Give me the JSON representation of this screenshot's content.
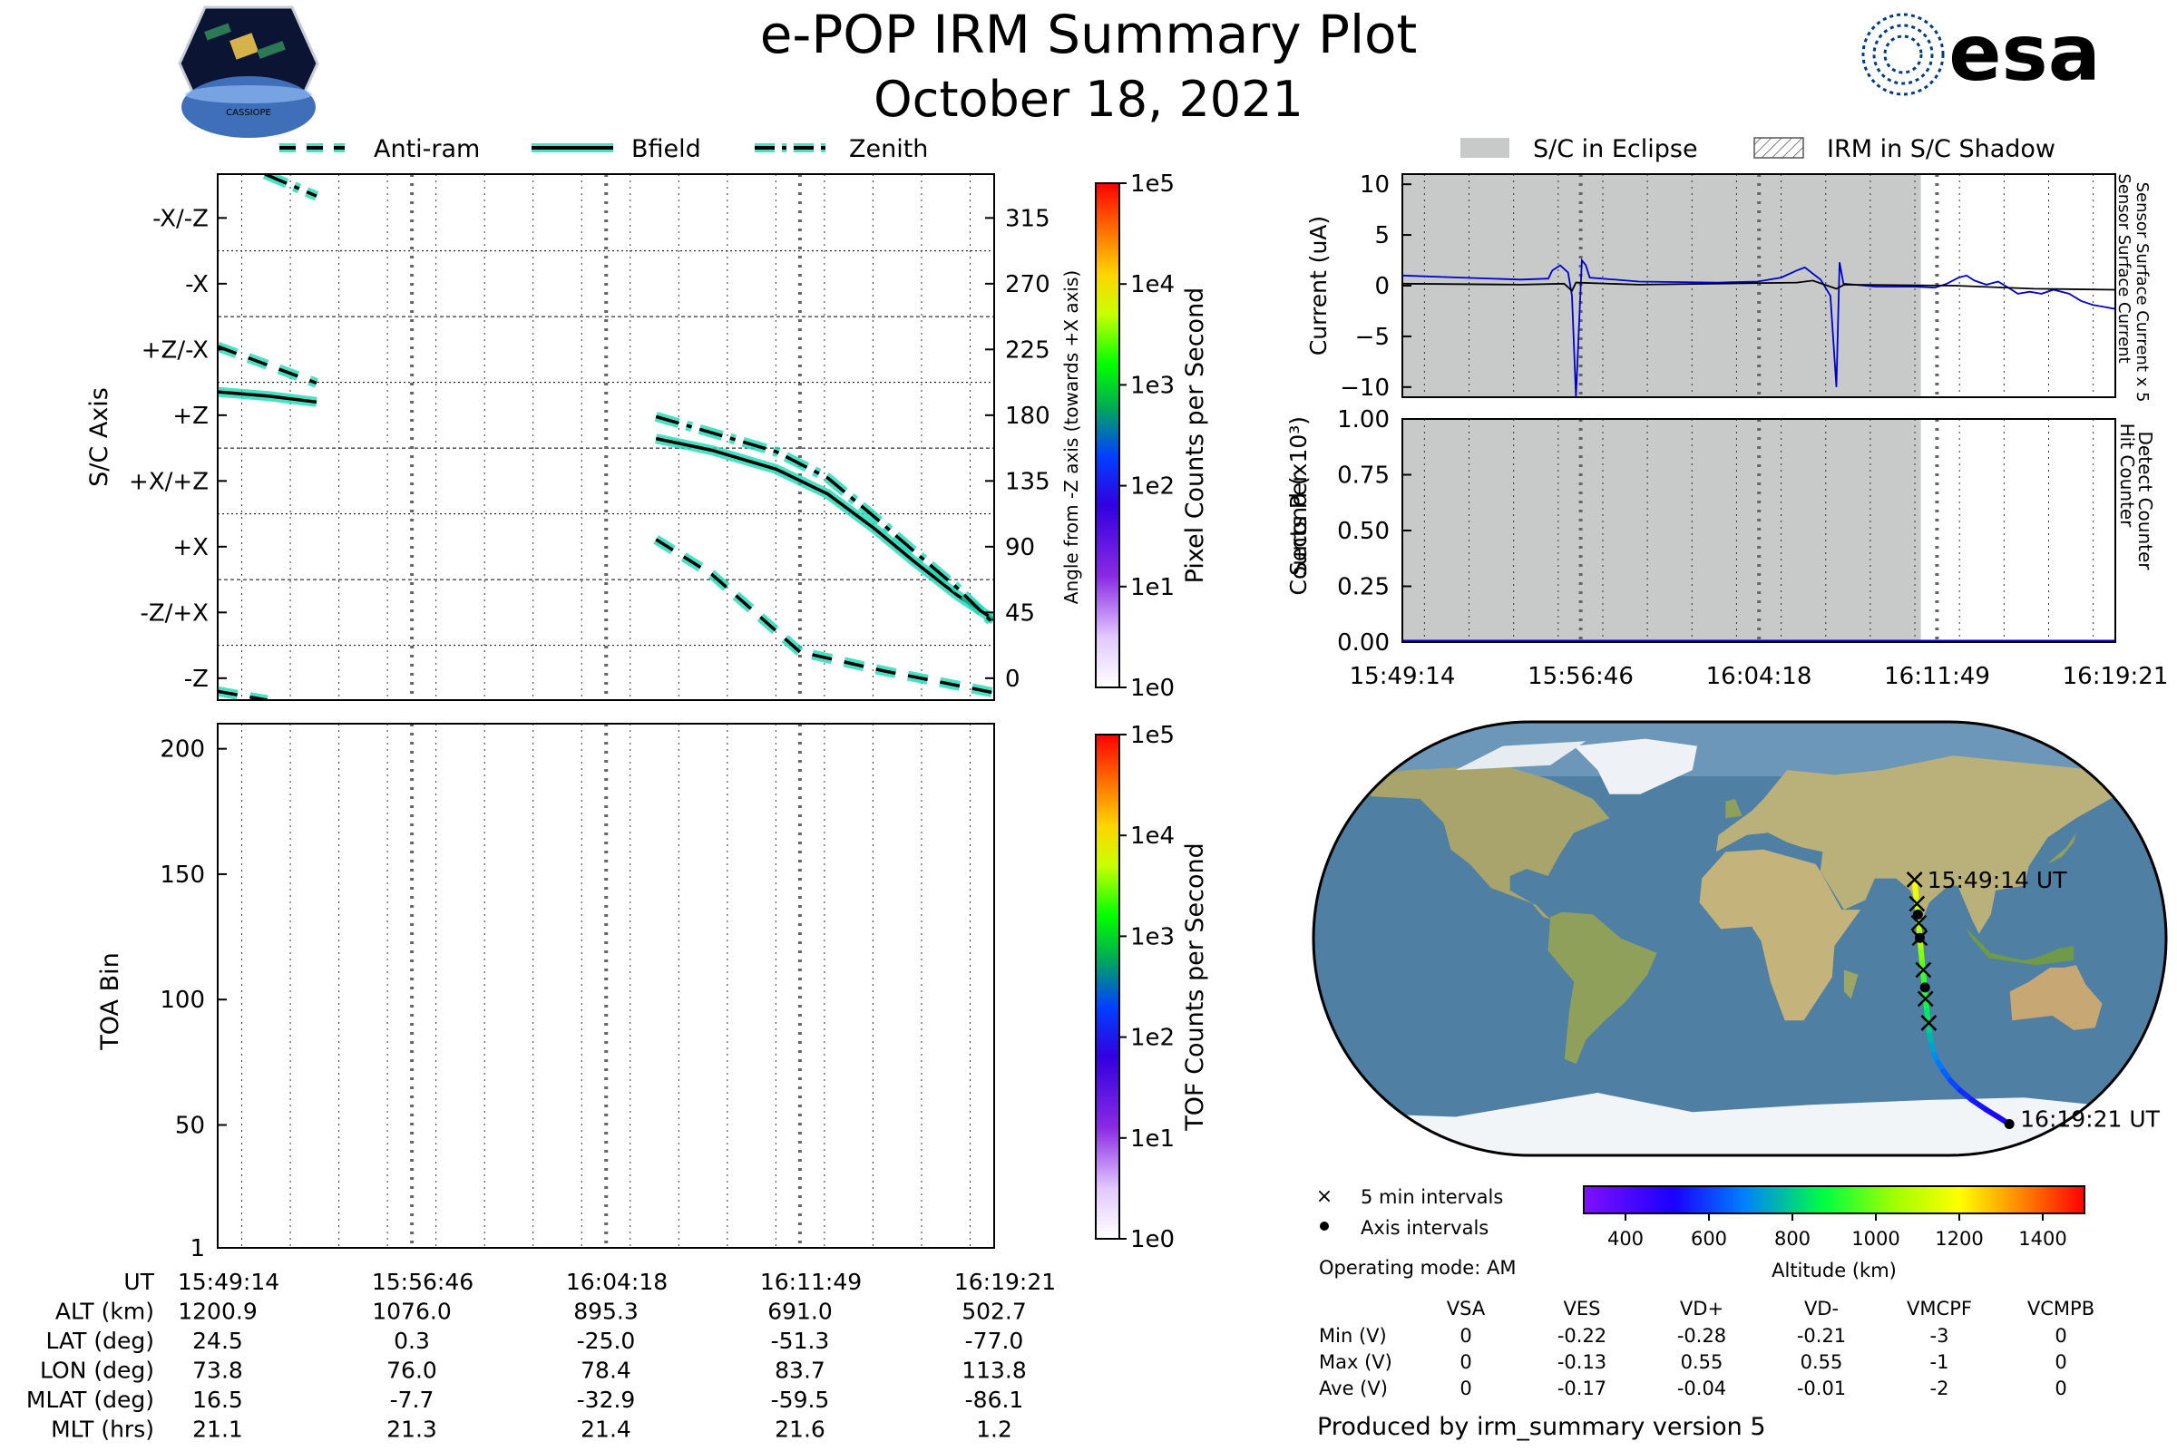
{
  "header": {
    "title": "e-POP IRM Summary Plot",
    "date": "October 18, 2021",
    "left_logo_text": "CASSIOPE",
    "right_logo_text": "esa"
  },
  "colors": {
    "trace_line": "#000000",
    "trace_glow": "#19d9b5",
    "eclipse": "#c8c9c9",
    "detect_counter": "#0000cc",
    "map_ocean": "#4f7fa3",
    "map_land": "#b8ad7a",
    "map_ice": "#f2f5f8"
  },
  "chart_data": [
    {
      "id": "sc_axis",
      "type": "line",
      "legend": [
        "Anti-ram",
        "Bfield",
        "Zenith"
      ],
      "legend_placement": "top",
      "ylabel": "S/C Axis",
      "y2label": "Angle from -Z axis (towards +X axis)",
      "yticks": [
        "-X/-Z",
        "-X",
        "+Z/-X",
        "+Z",
        "+X/+Z",
        "+X",
        "-Z/+X",
        "-Z"
      ],
      "y2ticks": [
        "315",
        "270",
        "225",
        "180",
        "135",
        "90",
        "45",
        "0"
      ],
      "y2lim": [
        -15,
        345
      ],
      "xlim": [
        0,
        1807
      ],
      "xticks_sec": [
        0,
        452,
        904,
        1355,
        1807
      ],
      "colorbar": {
        "label": "Pixel Counts per Second",
        "ticks": [
          "1e0",
          "1e1",
          "1e2",
          "1e3",
          "1e4",
          "1e5"
        ]
      },
      "series": [
        {
          "name": "Anti-ram",
          "style": "dashed",
          "segments": [
            [
              [
                0,
                227
              ],
              [
                230,
                202
              ]
            ],
            [
              [
                0,
                -9
              ],
              [
                115,
                -15
              ]
            ],
            [
              [
                1020,
                95
              ],
              [
                1150,
                71
              ],
              [
                1355,
                18
              ],
              [
                1550,
                5
              ],
              [
                1807,
                -10
              ]
            ]
          ]
        },
        {
          "name": "Bfield",
          "style": "solid",
          "segments": [
            [
              [
                0,
                196
              ],
              [
                120,
                193
              ],
              [
                230,
                189
              ]
            ],
            [
              [
                1020,
                164
              ],
              [
                1150,
                156
              ],
              [
                1300,
                143
              ],
              [
                1420,
                126
              ],
              [
                1530,
                102
              ],
              [
                1620,
                80
              ],
              [
                1720,
                57
              ],
              [
                1807,
                40
              ]
            ]
          ]
        },
        {
          "name": "Zenith",
          "style": "dashdot",
          "segments": [
            [
              [
                110,
                345
              ],
              [
                230,
                330
              ]
            ],
            [
              [
                1020,
                179
              ],
              [
                1150,
                168
              ],
              [
                1300,
                155
              ],
              [
                1420,
                137
              ],
              [
                1530,
                110
              ],
              [
                1620,
                87
              ],
              [
                1720,
                62
              ],
              [
                1807,
                37
              ]
            ]
          ]
        }
      ]
    },
    {
      "id": "toa",
      "type": "heatmap",
      "ylabel": "TOA Bin",
      "yticks": [
        "1",
        "50",
        "100",
        "150",
        "200"
      ],
      "ylim": [
        1,
        210
      ],
      "xlim": [
        0,
        1807
      ],
      "colorbar": {
        "label": "TOF Counts per Second",
        "ticks": [
          "1e0",
          "1e1",
          "1e2",
          "1e3",
          "1e4",
          "1e5"
        ]
      }
    },
    {
      "id": "current",
      "type": "line",
      "ylabel": "Current (uA)",
      "y2label_top": "Sensor Surface Current x 5",
      "y2label_bottom": "Sensor Surface Current",
      "yticks": [
        "10",
        "5",
        "0",
        "−5",
        "−10"
      ],
      "ylim": [
        -11,
        11
      ],
      "xlim": [
        0,
        1807
      ],
      "legend": [
        "S/C in Eclipse",
        "IRM in S/C Shadow"
      ],
      "eclipse_sec": [
        0,
        1314
      ],
      "series": [
        {
          "name": "Sensor Surface Current x 5",
          "points": [
            [
              0,
              1
            ],
            [
              150,
              0.8
            ],
            [
              300,
              0.6
            ],
            [
              370,
              0.7
            ],
            [
              380,
              1.5
            ],
            [
              400,
              2
            ],
            [
              420,
              1.3
            ],
            [
              430,
              -1
            ],
            [
              440,
              -11
            ],
            [
              450,
              -2
            ],
            [
              455,
              2.5
            ],
            [
              465,
              2
            ],
            [
              475,
              0.8
            ],
            [
              600,
              0.4
            ],
            [
              800,
              0.3
            ],
            [
              900,
              0.4
            ],
            [
              960,
              0.8
            ],
            [
              1000,
              1.5
            ],
            [
              1020,
              1.8
            ],
            [
              1040,
              1.2
            ],
            [
              1060,
              0.6
            ],
            [
              1085,
              -1
            ],
            [
              1100,
              -10
            ],
            [
              1108,
              2.3
            ],
            [
              1118,
              0.2
            ],
            [
              1200,
              -0.1
            ],
            [
              1300,
              -0.1
            ],
            [
              1350,
              -0.2
            ],
            [
              1380,
              0.2
            ],
            [
              1410,
              0.8
            ],
            [
              1430,
              1
            ],
            [
              1450,
              0.5
            ],
            [
              1480,
              0.1
            ],
            [
              1510,
              0.4
            ],
            [
              1540,
              -0.3
            ],
            [
              1560,
              -0.8
            ],
            [
              1590,
              -0.6
            ],
            [
              1620,
              -0.8
            ],
            [
              1650,
              -0.4
            ],
            [
              1690,
              -0.8
            ],
            [
              1720,
              -1.5
            ],
            [
              1750,
              -1.9
            ],
            [
              1780,
              -2.1
            ],
            [
              1807,
              -2.3
            ]
          ]
        },
        {
          "name": "Sensor Surface Current",
          "points": [
            [
              0,
              0.2
            ],
            [
              300,
              0.1
            ],
            [
              410,
              0.2
            ],
            [
              430,
              -0.5
            ],
            [
              440,
              0.3
            ],
            [
              600,
              0.1
            ],
            [
              1000,
              0.3
            ],
            [
              1040,
              0.5
            ],
            [
              1100,
              -0.3
            ],
            [
              1120,
              0.1
            ],
            [
              1400,
              0
            ],
            [
              1600,
              -0.3
            ],
            [
              1807,
              -0.4
            ]
          ]
        }
      ]
    },
    {
      "id": "counts",
      "type": "line",
      "ylabel": "Counts Per Second (x10³)",
      "y2label_top": "Detect Counter",
      "y2label_bottom": "Hit Counter",
      "yticks": [
        "1.00",
        "0.75",
        "0.50",
        "0.25",
        "0.00"
      ],
      "ylim": [
        0,
        1
      ],
      "xlim": [
        0,
        1807
      ],
      "xticks": [
        "15:49:14",
        "15:56:46",
        "16:04:18",
        "16:11:49",
        "16:19:21"
      ],
      "eclipse_sec": [
        0,
        1314
      ],
      "series": [
        {
          "name": "Detect Counter",
          "points": [
            [
              0,
              0
            ],
            [
              1807,
              0
            ]
          ]
        }
      ]
    },
    {
      "id": "altitude_colorbar",
      "type": "colorbar",
      "xlabel": "Altitude (km)",
      "xticks": [
        "400",
        "600",
        "800",
        "1000",
        "1200",
        "1400"
      ],
      "xlim": [
        300,
        1500
      ]
    }
  ],
  "map": {
    "start_label": "15:49:14 UT",
    "end_label": "16:19:21 UT",
    "legend_items": [
      "5 min intervals",
      "Axis intervals"
    ],
    "mode": "Operating mode: AM",
    "track_lonlat_alt": [
      [
        73.8,
        24.5,
        1200.9
      ],
      [
        74.2,
        20,
        1180
      ],
      [
        74.6,
        16,
        1140
      ],
      [
        75,
        12,
        1110
      ],
      [
        75.4,
        8,
        1095
      ],
      [
        75.7,
        4,
        1085
      ],
      [
        76,
        0.3,
        1076
      ],
      [
        76.5,
        -5,
        1040
      ],
      [
        77,
        -10,
        990
      ],
      [
        77.5,
        -15,
        950
      ],
      [
        78,
        -20,
        920
      ],
      [
        78.4,
        -25,
        895.3
      ],
      [
        79,
        -30,
        860
      ],
      [
        79.5,
        -35,
        820
      ],
      [
        80.2,
        -40,
        780
      ],
      [
        81,
        -44,
        745
      ],
      [
        82,
        -48,
        715
      ],
      [
        83.7,
        -51.3,
        691
      ],
      [
        86,
        -55,
        660
      ],
      [
        89,
        -59,
        625
      ],
      [
        93,
        -63,
        590
      ],
      [
        98,
        -67,
        560
      ],
      [
        104,
        -71,
        535
      ],
      [
        109,
        -74,
        518
      ],
      [
        113.8,
        -77,
        502.7
      ]
    ],
    "crosses_lonlat": [
      [
        73.8,
        24.5
      ],
      [
        74.8,
        14.5
      ],
      [
        75.6,
        6.5
      ],
      [
        76,
        0.3
      ],
      [
        77.5,
        -13
      ],
      [
        78.4,
        -25
      ],
      [
        79.8,
        -35
      ]
    ],
    "dots_lonlat": [
      [
        75.2,
        10
      ],
      [
        76,
        0.3
      ],
      [
        78.2,
        -20.3
      ],
      [
        113.8,
        -77
      ]
    ]
  },
  "ephemeris": {
    "labels": [
      "UT",
      "ALT (km)",
      "LAT (deg)",
      "LON (deg)",
      "MLAT (deg)",
      "MLT (hrs)"
    ],
    "columns": [
      [
        "15:49:14",
        "1200.9",
        "24.5",
        "73.8",
        "16.5",
        "21.1"
      ],
      [
        "15:56:46",
        "1076.0",
        "0.3",
        "76.0",
        "-7.7",
        "21.3"
      ],
      [
        "16:04:18",
        "895.3",
        "-25.0",
        "78.4",
        "-32.9",
        "21.4"
      ],
      [
        "16:11:49",
        "691.0",
        "-51.3",
        "83.7",
        "-59.5",
        "21.6"
      ],
      [
        "16:19:21",
        "502.7",
        "-77.0",
        "113.8",
        "-86.1",
        "1.2"
      ]
    ]
  },
  "voltage_table": {
    "headers": [
      "VSA",
      "VES",
      "VD+",
      "VD-",
      "VMCPF",
      "VCMPB"
    ],
    "rows": [
      {
        "label": "Min (V)",
        "values": [
          "0",
          "-0.22",
          "-0.28",
          "-0.21",
          "-3",
          "0"
        ]
      },
      {
        "label": "Max (V)",
        "values": [
          "0",
          "-0.13",
          "0.55",
          "0.55",
          "-1",
          "0"
        ]
      },
      {
        "label": "Ave (V)",
        "values": [
          "0",
          "-0.17",
          "-0.04",
          "-0.01",
          "-2",
          "0"
        ]
      }
    ]
  },
  "footer": "Produced by irm_summary version 5"
}
